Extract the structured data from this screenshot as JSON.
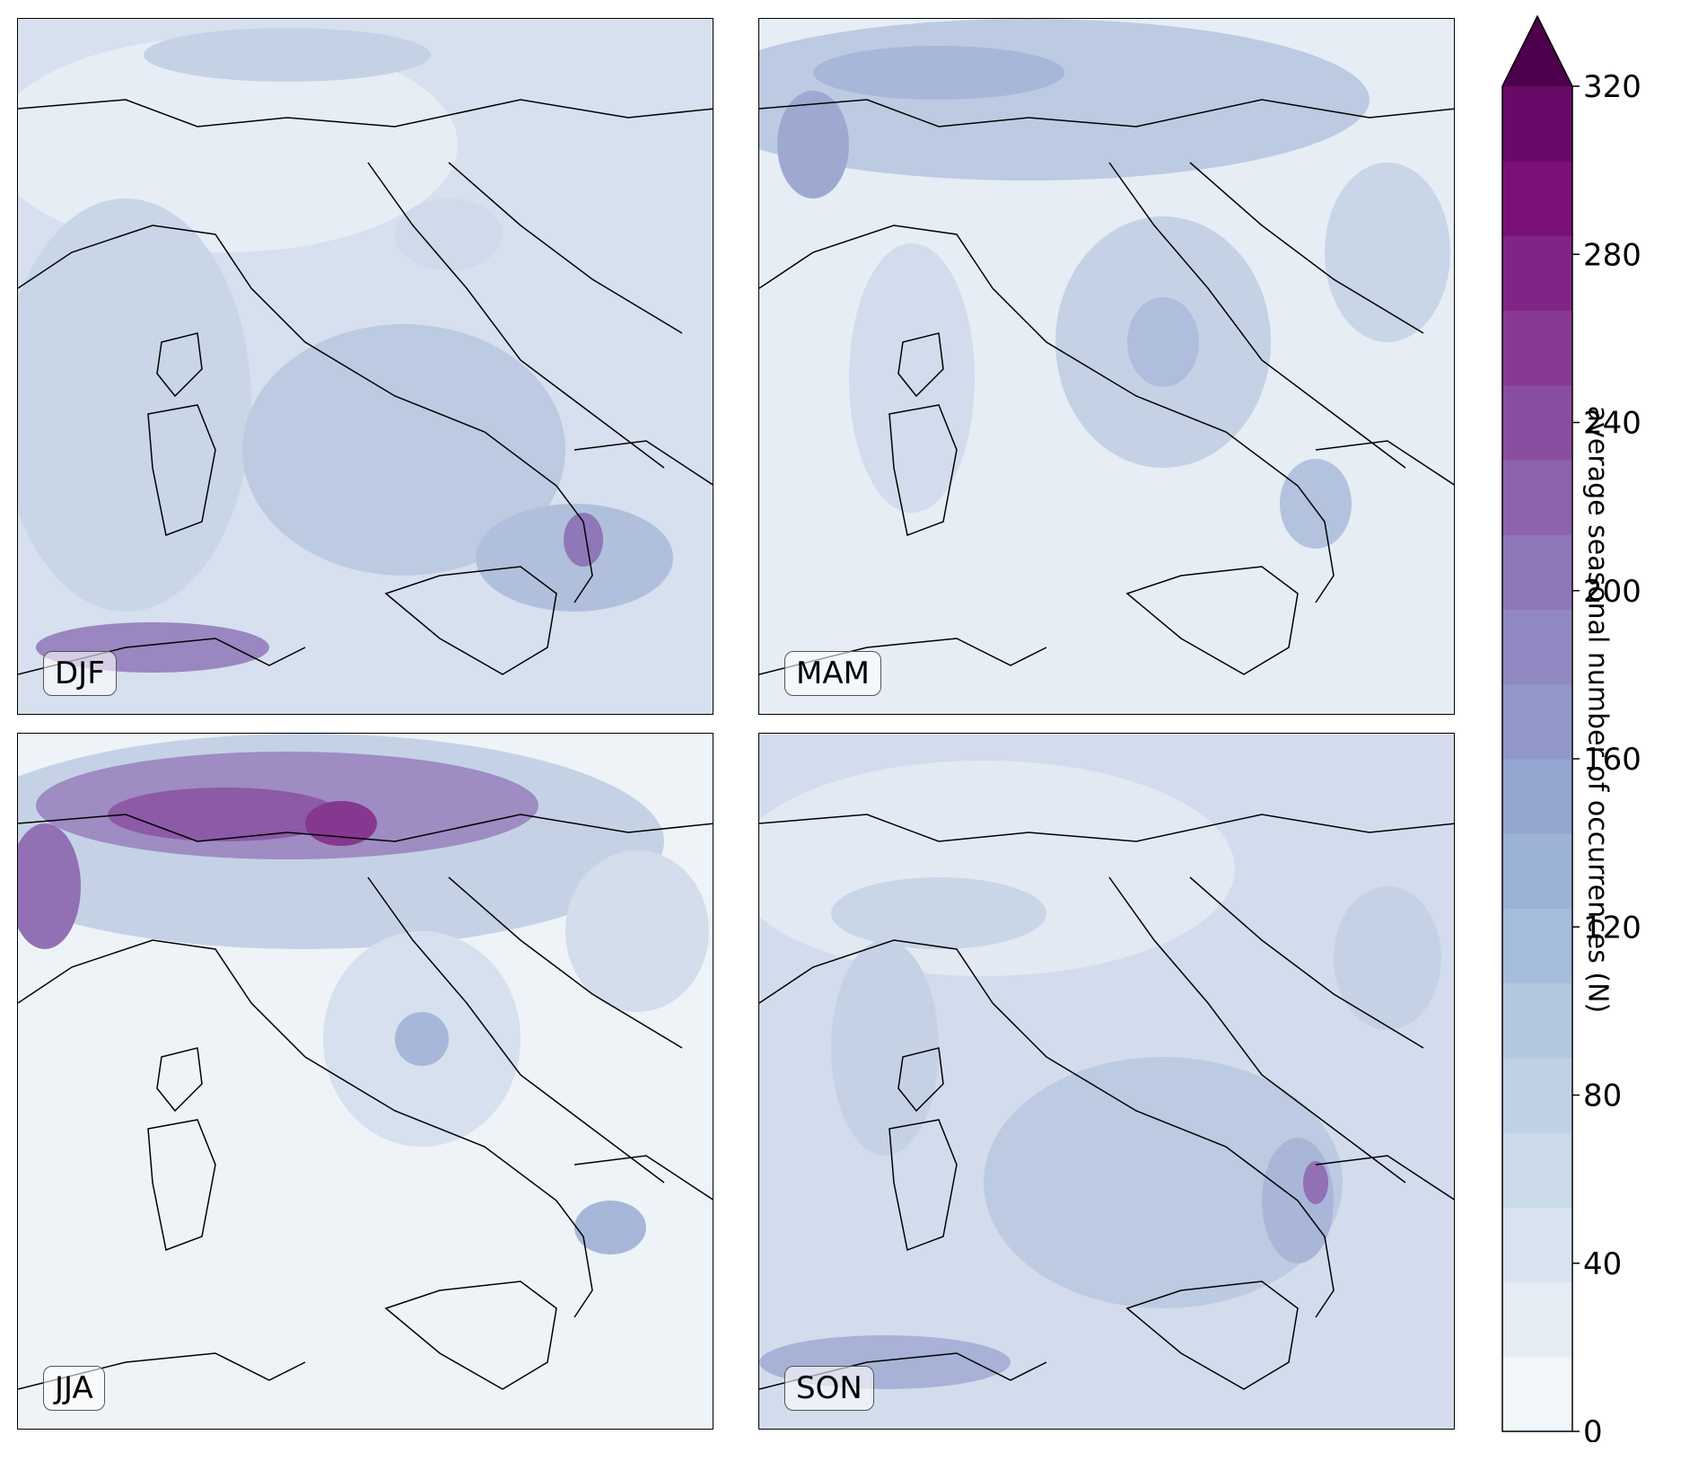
{
  "panels": [
    {
      "season": "DJF"
    },
    {
      "season": "MAM"
    },
    {
      "season": "JJA"
    },
    {
      "season": "SON"
    }
  ],
  "colorbar": {
    "label": "average seasonal number of occurrences (N)",
    "min": 0,
    "max": 320,
    "ticks": [
      0,
      40,
      80,
      120,
      160,
      200,
      240,
      280,
      320
    ],
    "extend": "max",
    "colors": [
      "#f0f6fa",
      "#e4ecf4",
      "#d8e3ef",
      "#cbdae9",
      "#bfd1e4",
      "#b2c8df",
      "#a6bddb",
      "#9cb2d6",
      "#94a6d0",
      "#9198c8",
      "#9088c0",
      "#8e77b7",
      "#8c63ac",
      "#8a4ea0",
      "#883993",
      "#822485",
      "#7a1178",
      "#6a0a68",
      "#4d004b"
    ]
  }
}
